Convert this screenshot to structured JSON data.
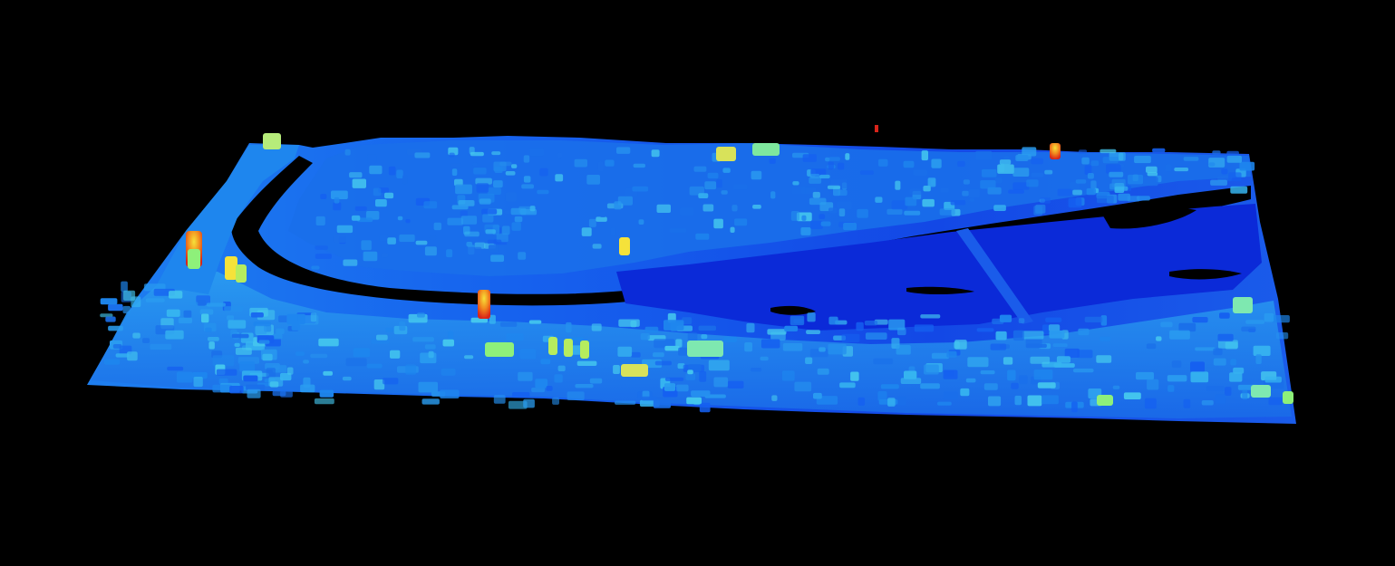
{
  "viewer": {
    "background": "#000000",
    "content": "lidar-point-cloud-elevation-render",
    "colormap": [
      "#0a1ad8",
      "#1560f0",
      "#1ea0f2",
      "#32d6e6",
      "#8ef07a",
      "#f5e23a",
      "#f28a1e",
      "#d8241a"
    ],
    "ground_color": "#1238e6",
    "water_color": "#0b2ad8"
  }
}
